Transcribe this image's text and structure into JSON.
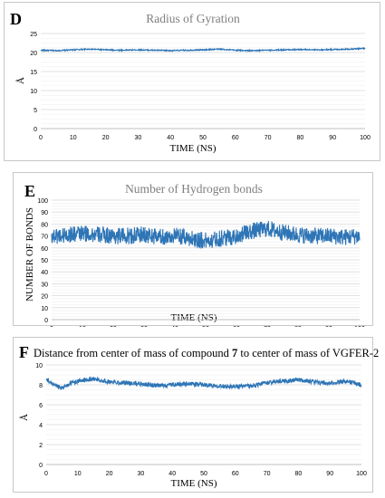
{
  "panels": [
    {
      "letter": "D",
      "title": "Radius of Gyration",
      "title_post": "",
      "ylabel": "Å",
      "xlabel": "TIME (NS)"
    },
    {
      "letter": "E",
      "title": "Number of Hydrogen bonds",
      "title_post": "",
      "ylabel": "NUMBER OF BONDS",
      "xlabel": "TIME (NS)"
    },
    {
      "letter": "F",
      "title": "Distance from center of mass of compound ",
      "title_bold": "7",
      "title_post": " to center of mass of VGFER-2",
      "ylabel": "Å",
      "xlabel": "TIME (NS)"
    }
  ],
  "colors": {
    "series": "#2e75b6",
    "grid": "#d9d9d9"
  },
  "chart_data": [
    {
      "type": "line",
      "title": "Radius of Gyration",
      "xlabel": "TIME (NS)",
      "ylabel": "Å",
      "xlim": [
        0,
        100
      ],
      "ylim": [
        0,
        25
      ],
      "xticks": [
        0,
        10,
        20,
        30,
        40,
        50,
        60,
        70,
        80,
        90,
        100
      ],
      "yticks": [
        0,
        5,
        10,
        15,
        20,
        25
      ],
      "grid": true,
      "series": [
        {
          "x": [
            0,
            5,
            10,
            15,
            20,
            25,
            30,
            35,
            40,
            45,
            50,
            55,
            60,
            65,
            70,
            75,
            80,
            85,
            90,
            95,
            100
          ],
          "y": [
            20.6,
            20.5,
            20.7,
            20.9,
            20.7,
            20.6,
            20.7,
            20.6,
            20.5,
            20.6,
            20.7,
            20.9,
            20.6,
            20.5,
            20.6,
            20.7,
            20.8,
            20.7,
            20.8,
            20.9,
            21.1
          ],
          "noise": 0.15
        }
      ]
    },
    {
      "type": "line",
      "title": "Number of Hydrogen bonds",
      "xlabel": "TIME (NS)",
      "ylabel": "NUMBER OF BONDS",
      "xlim": [
        0,
        100
      ],
      "ylim": [
        0,
        100
      ],
      "xticks": [
        0,
        10,
        20,
        30,
        40,
        50,
        60,
        70,
        80,
        90,
        100
      ],
      "yticks": [
        0,
        10,
        20,
        30,
        40,
        50,
        60,
        70,
        80,
        90,
        100
      ],
      "grid": true,
      "series": [
        {
          "x": [
            0,
            5,
            10,
            15,
            20,
            25,
            30,
            35,
            40,
            45,
            50,
            55,
            60,
            65,
            70,
            75,
            80,
            85,
            90,
            95,
            100
          ],
          "y": [
            70,
            71,
            72,
            71,
            70,
            70,
            71,
            69,
            70,
            68,
            66,
            68,
            70,
            74,
            76,
            73,
            71,
            70,
            70,
            69,
            70
          ],
          "noise": 7
        }
      ]
    },
    {
      "type": "line",
      "title": "Distance from center of mass of compound 7 to center of mass of VGFER-2",
      "xlabel": "TIME (NS)",
      "ylabel": "Å",
      "xlim": [
        0,
        100
      ],
      "ylim": [
        0,
        10
      ],
      "xticks": [
        0,
        10,
        20,
        30,
        40,
        50,
        60,
        70,
        80,
        90,
        100
      ],
      "yticks": [
        0,
        2,
        4,
        6,
        8,
        10
      ],
      "grid": true,
      "series": [
        {
          "x": [
            0,
            2,
            5,
            8,
            12,
            15,
            20,
            25,
            30,
            35,
            40,
            45,
            50,
            55,
            60,
            65,
            70,
            75,
            80,
            85,
            90,
            95,
            100
          ],
          "y": [
            8.5,
            8.1,
            7.7,
            8.2,
            8.5,
            8.6,
            8.3,
            8.2,
            8.1,
            7.9,
            8.0,
            8.1,
            8.0,
            7.9,
            7.8,
            7.9,
            8.2,
            8.4,
            8.5,
            8.3,
            8.1,
            8.4,
            8.0
          ],
          "noise": 0.22
        }
      ]
    }
  ]
}
